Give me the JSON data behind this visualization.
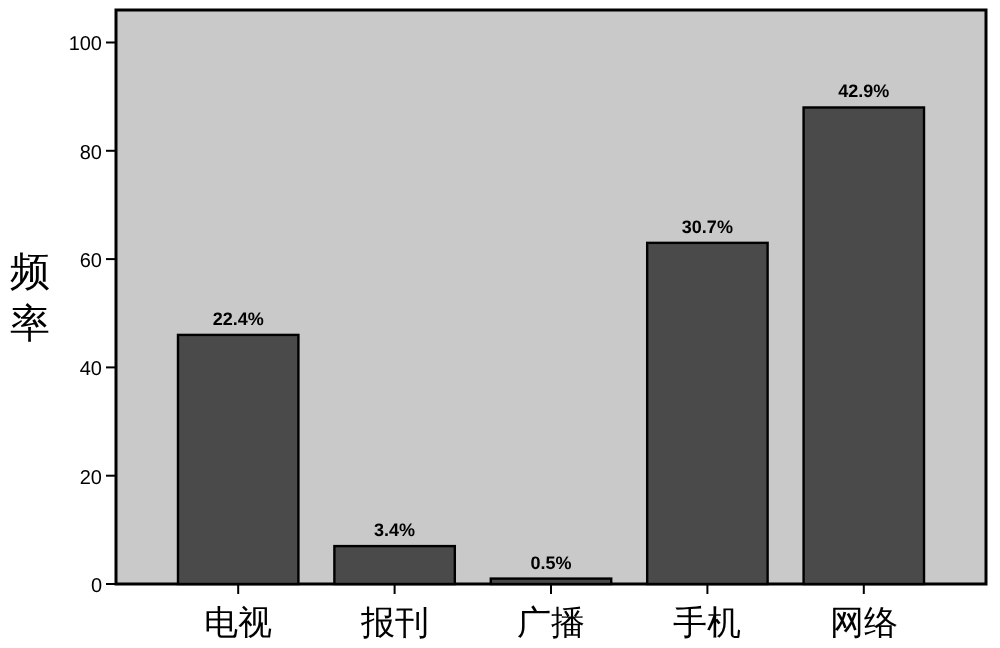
{
  "chart_data": {
    "type": "bar",
    "ylabel": "频率",
    "categories": [
      "电视",
      "报刊",
      "广播",
      "手机",
      "网络"
    ],
    "values": [
      46,
      7,
      1,
      63,
      88
    ],
    "annotations": [
      {
        "text": "22.4%",
        "x": "电视",
        "y": 46
      },
      {
        "text": "3.4%",
        "x": "报刊",
        "y": 7
      },
      {
        "text": "0.5%",
        "x": "广播",
        "y": 1
      },
      {
        "text": "30.7%",
        "x": "手机",
        "y": 63
      },
      {
        "text": "42.9%",
        "x": "网络",
        "y": 88
      }
    ],
    "color": "#4a4a4a",
    "ylim": [
      0,
      106
    ],
    "yticks": [
      0,
      20,
      40,
      60,
      80,
      100
    ],
    "grid": false
  }
}
